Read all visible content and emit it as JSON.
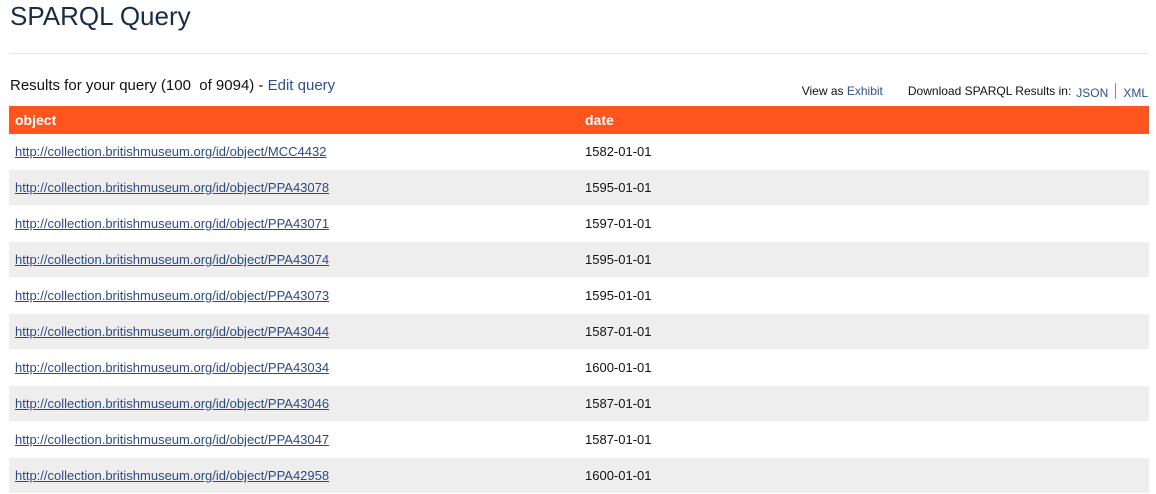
{
  "title": "SPARQL Query",
  "results": {
    "prefix": "Results for your query (100  of 9094) - ",
    "edit_label": "Edit query"
  },
  "right": {
    "view_as": "View as ",
    "exhibit": "Exhibit",
    "download": "Download SPARQL Results in:",
    "json": "JSON",
    "xml": "XML"
  },
  "accent": "#fe541e",
  "table": {
    "headers": [
      "object",
      "date"
    ],
    "rows": [
      [
        "http://collection.britishmuseum.org/id/object/MCC4432",
        "1582-01-01"
      ],
      [
        "http://collection.britishmuseum.org/id/object/PPA43078",
        "1595-01-01"
      ],
      [
        "http://collection.britishmuseum.org/id/object/PPA43071",
        "1597-01-01"
      ],
      [
        "http://collection.britishmuseum.org/id/object/PPA43074",
        "1595-01-01"
      ],
      [
        "http://collection.britishmuseum.org/id/object/PPA43073",
        "1595-01-01"
      ],
      [
        "http://collection.britishmuseum.org/id/object/PPA43044",
        "1587-01-01"
      ],
      [
        "http://collection.britishmuseum.org/id/object/PPA43034",
        "1600-01-01"
      ],
      [
        "http://collection.britishmuseum.org/id/object/PPA43046",
        "1587-01-01"
      ],
      [
        "http://collection.britishmuseum.org/id/object/PPA43047",
        "1587-01-01"
      ],
      [
        "http://collection.britishmuseum.org/id/object/PPA42958",
        "1600-01-01"
      ]
    ]
  }
}
